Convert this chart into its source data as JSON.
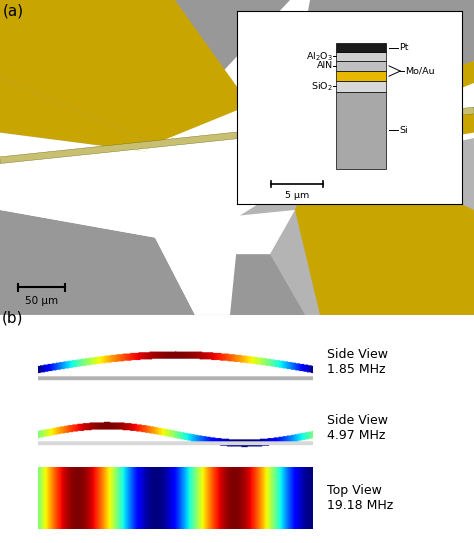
{
  "fig_width": 4.74,
  "fig_height": 5.43,
  "dpi": 100,
  "panel_a_label": "(a)",
  "panel_b_label": "(b)",
  "scale_bar_a": "50 μm",
  "scale_bar_inset": "5 μm",
  "color_gold": "#C8A500",
  "color_gray_light": "#B4B4B4",
  "color_gray_mid": "#989898",
  "color_gray_dark": "#707070",
  "color_pt": "#1A1A1A",
  "color_al2o3": "#D0D0D0",
  "color_aln": "#C0C0C0",
  "color_moau": "#E8B800",
  "color_sio2": "#D8D8D8",
  "color_si": "#A8A8A8",
  "mode_labels": [
    "Side View\n1.85 MHz",
    "Side View\n4.97 MHz",
    "Top View\n19.18 MHz"
  ],
  "background": "#ffffff"
}
